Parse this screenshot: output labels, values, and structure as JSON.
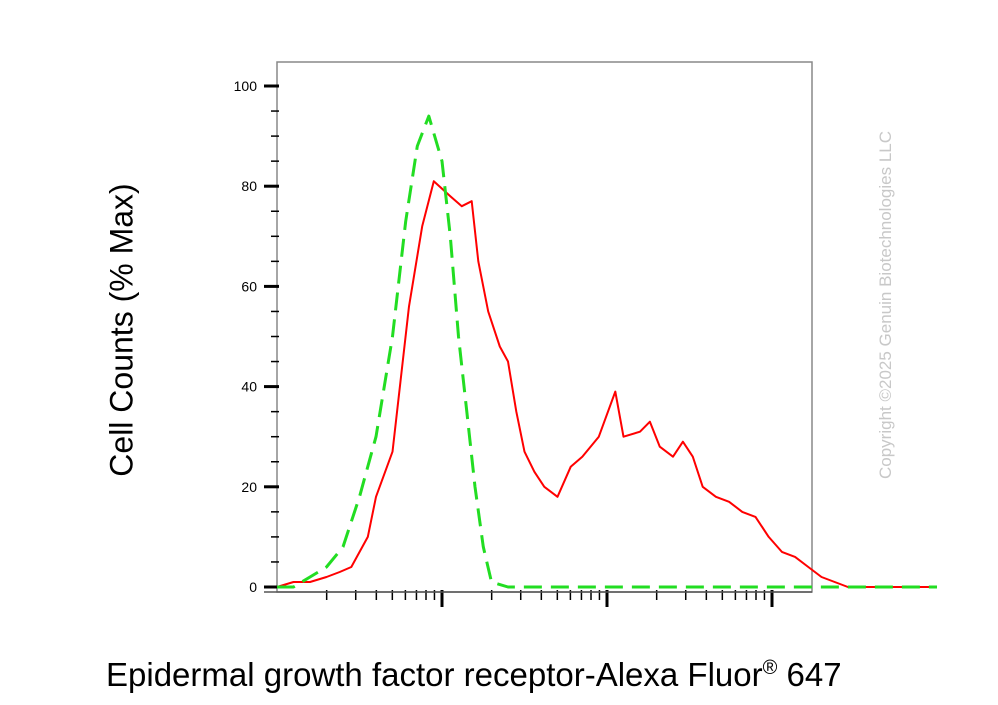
{
  "watermark": "Copyright ©2025 Genuin Biotechnologies LLC",
  "chart_data": {
    "type": "line",
    "title": "",
    "ylabel": "Cell Counts (% Max)",
    "xlabel_main": "Epidermal growth factor receptor-Alexa Fluor",
    "xlabel_sup": "®",
    "xlabel_tail": " 647",
    "xscale": "log",
    "xlim": [
      0,
      4
    ],
    "ylim": [
      -2,
      105
    ],
    "yticks": [
      0,
      20,
      40,
      60,
      80,
      100
    ],
    "ytick_labels": [
      "0",
      "20",
      "40",
      "60",
      "80",
      "100"
    ],
    "grid": false,
    "series": [
      {
        "color": "#ff0000",
        "style": "solid",
        "x": [
          0.0,
          0.1,
          0.2,
          0.3,
          0.38,
          0.45,
          0.55,
          0.6,
          0.7,
          0.8,
          0.88,
          0.95,
          1.05,
          1.12,
          1.18,
          1.22,
          1.28,
          1.35,
          1.4,
          1.45,
          1.5,
          1.56,
          1.62,
          1.7,
          1.78,
          1.85,
          1.95,
          2.05,
          2.1,
          2.2,
          2.26,
          2.32,
          2.4,
          2.46,
          2.52,
          2.58,
          2.66,
          2.74,
          2.82,
          2.9,
          2.98,
          3.06,
          3.14,
          3.22,
          3.3,
          3.38,
          3.46,
          3.55,
          3.65,
          3.75,
          3.85,
          4.0
        ],
        "y": [
          0,
          1,
          1,
          2,
          3,
          4,
          10,
          18,
          27,
          56,
          72,
          81,
          78,
          76,
          77,
          65,
          55,
          48,
          45,
          35,
          27,
          23,
          20,
          18,
          24,
          26,
          30,
          39,
          30,
          31,
          33,
          28,
          26,
          29,
          26,
          20,
          18,
          17,
          15,
          14,
          10,
          7,
          6,
          4,
          2,
          1,
          0,
          0,
          0,
          0,
          0,
          0
        ]
      },
      {
        "color": "#22dd22",
        "style": "dashed",
        "x": [
          0.0,
          0.1,
          0.2,
          0.3,
          0.4,
          0.5,
          0.6,
          0.7,
          0.78,
          0.85,
          0.92,
          1.0,
          1.05,
          1.1,
          1.15,
          1.2,
          1.25,
          1.3,
          1.4,
          1.6,
          2.0,
          2.5,
          3.0,
          3.5,
          4.0
        ],
        "y": [
          0,
          0,
          2,
          4,
          8,
          18,
          30,
          50,
          73,
          88,
          94,
          85,
          70,
          50,
          35,
          20,
          8,
          1,
          0,
          0,
          0,
          0,
          0,
          0,
          0
        ]
      }
    ]
  }
}
